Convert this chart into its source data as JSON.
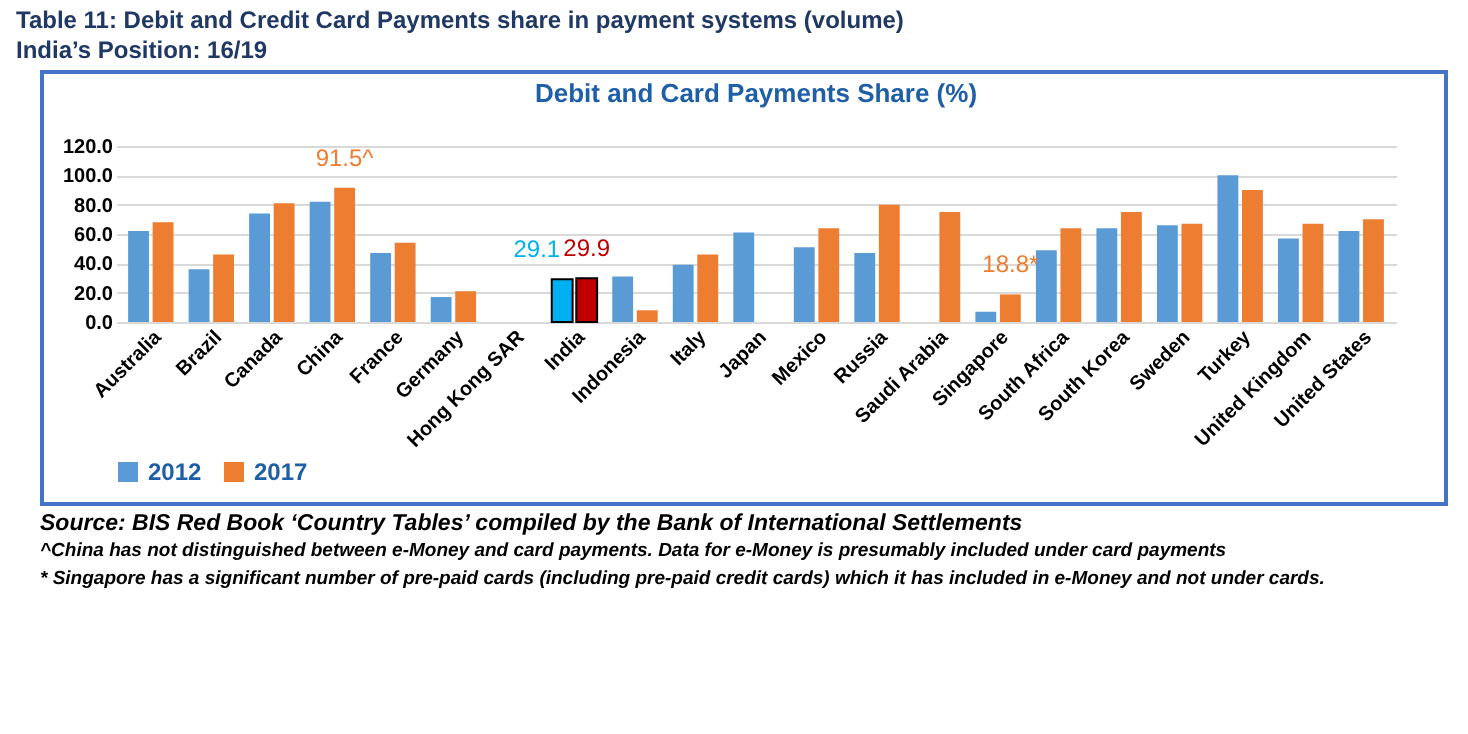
{
  "chart_data": {
    "type": "bar",
    "title": "Debit and Card Payments Share (%)",
    "subtitle": "Table 11: Debit and Credit Card Payments share in payment systems (volume)\nIndia’s Position: 16/19",
    "categories": [
      "Australia",
      "Brazil",
      "Canada",
      "China",
      "France",
      "Germany",
      "Hong Kong SAR",
      "India",
      "Indonesia",
      "Italy",
      "Japan",
      "Mexico",
      "Russia",
      "Saudi Arabia",
      "Singapore",
      "South Africa",
      "South Korea",
      "Sweden",
      "Turkey",
      "United Kingdom",
      "United States"
    ],
    "series": [
      {
        "name": "2012",
        "color": "#5b9bd5",
        "colors": [
          "#5b9bd5",
          "#5b9bd5",
          "#5b9bd5",
          "#5b9bd5",
          "#5b9bd5",
          "#5b9bd5",
          "#5b9bd5",
          "#00b0f0",
          "#5b9bd5",
          "#5b9bd5",
          "#5b9bd5",
          "#5b9bd5",
          "#5b9bd5",
          "#5b9bd5",
          "#5b9bd5",
          "#5b9bd5",
          "#5b9bd5",
          "#5b9bd5",
          "#5b9bd5",
          "#5b9bd5",
          "#5b9bd5"
        ],
        "values": [
          62,
          36,
          74,
          82,
          47,
          17,
          null,
          29.1,
          31,
          39,
          61,
          51,
          47,
          null,
          7,
          49,
          64,
          66,
          100,
          57,
          62
        ],
        "value_labels": [
          null,
          null,
          null,
          null,
          null,
          null,
          null,
          "29.1",
          null,
          null,
          null,
          null,
          null,
          null,
          null,
          null,
          null,
          null,
          null,
          null,
          null
        ]
      },
      {
        "name": "2017",
        "color": "#ed7d31",
        "colors": [
          "#ed7d31",
          "#ed7d31",
          "#ed7d31",
          "#ed7d31",
          "#ed7d31",
          "#ed7d31",
          "#ed7d31",
          "#c00000",
          "#ed7d31",
          "#ed7d31",
          "#ed7d31",
          "#ed7d31",
          "#ed7d31",
          "#ed7d31",
          "#ed7d31",
          "#ed7d31",
          "#ed7d31",
          "#ed7d31",
          "#ed7d31",
          "#ed7d31",
          "#ed7d31"
        ],
        "values": [
          68,
          46,
          81,
          91.5,
          54,
          21,
          null,
          29.9,
          8,
          46,
          null,
          64,
          80,
          75,
          18.8,
          64,
          75,
          67,
          90,
          67,
          70
        ],
        "value_labels": [
          null,
          null,
          null,
          "91.5^",
          null,
          null,
          null,
          "29.9",
          null,
          null,
          null,
          null,
          null,
          null,
          "18.8*",
          null,
          null,
          null,
          null,
          null,
          null
        ]
      }
    ],
    "ylim": [
      0,
      120
    ],
    "yticks": [
      {
        "value": 0,
        "label": "0.0"
      },
      {
        "value": 20,
        "label": "20.0"
      },
      {
        "value": 40,
        "label": "40.0"
      },
      {
        "value": 60,
        "label": "60.0"
      },
      {
        "value": 80,
        "label": "80.0"
      },
      {
        "value": 100,
        "label": "100.0"
      },
      {
        "value": 120,
        "label": "120.0"
      }
    ],
    "grid": "y",
    "legend": "bottom",
    "annotations": [
      "Source: BIS Red Book ‘Country Tables’ compiled by the Bank of International Settlements",
      "^China has not distinguished between e-Money and card payments. Data for e-Money is presumably included under card payments",
      "* Singapore has a significant number of pre-paid cards (including pre-paid credit cards) which it has included in e-Money and not under cards."
    ]
  }
}
